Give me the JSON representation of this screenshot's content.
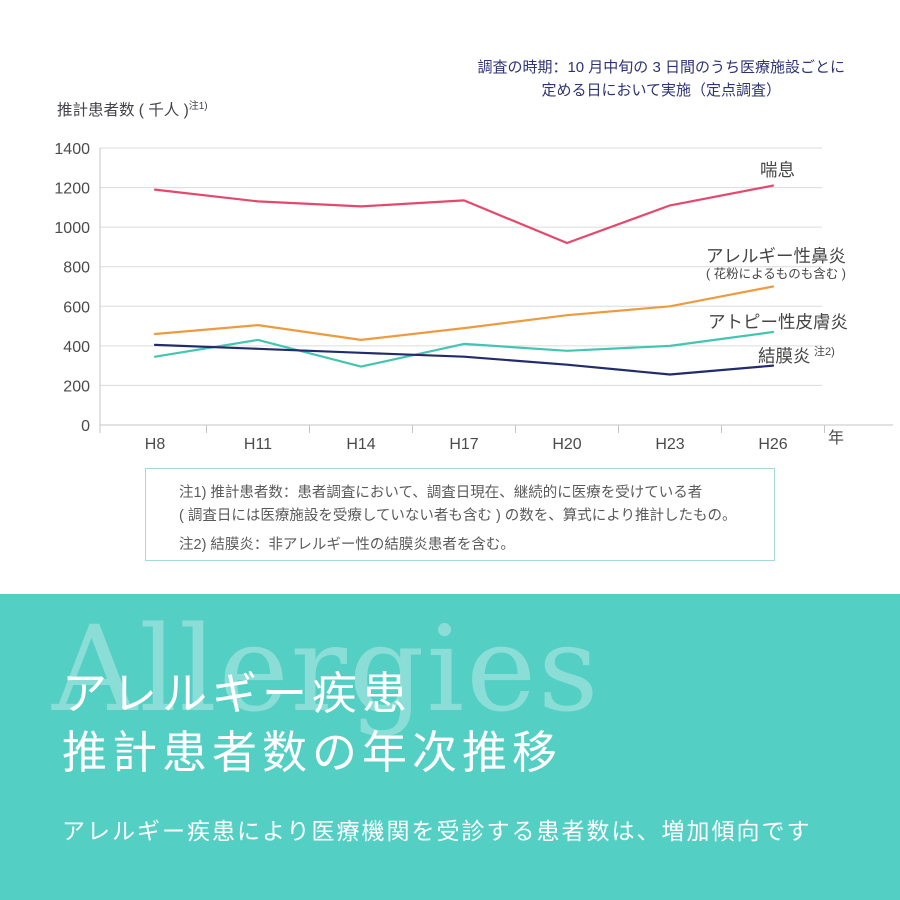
{
  "survey_note": {
    "line1": "調査の時期：10 月中旬の 3 日間のうち医療施設ごとに",
    "line2": "定める日において実施（定点調査）"
  },
  "y_axis": {
    "label": "推計患者数 ( 千人 )",
    "label_sup": "注1)"
  },
  "x_axis_unit": "年",
  "chart_data": {
    "type": "line",
    "title": "アレルギー疾患 推計患者数の年次推移",
    "categories": [
      "H8",
      "H11",
      "H14",
      "H17",
      "H20",
      "H23",
      "H26"
    ],
    "series": [
      {
        "name": "喘息",
        "color": "#e5486b",
        "values": [
          1190,
          1130,
          1105,
          1135,
          920,
          1110,
          1210
        ]
      },
      {
        "name": "アレルギー性鼻炎",
        "sub": "( 花粉によるものも含む )",
        "color": "#ee9b40",
        "values": [
          460,
          505,
          430,
          490,
          555,
          600,
          700
        ]
      },
      {
        "name": "アトピー性皮膚炎",
        "color": "#44c5b1",
        "values": [
          345,
          430,
          295,
          410,
          375,
          400,
          470
        ]
      },
      {
        "name": "結膜炎",
        "sup": "注2)",
        "color": "#222c6b",
        "values": [
          405,
          385,
          365,
          345,
          305,
          255,
          300
        ]
      }
    ],
    "ylim": [
      0,
      1400
    ],
    "ytick_step": 200,
    "grid": true,
    "legend_position": "right-inline",
    "colors": {
      "gridline": "#dcdcdc",
      "axis": "#c6c6c6",
      "tick_label": "#4b4b4b"
    }
  },
  "notes_box": {
    "note1_line1": "注1) 推計患者数：患者調査において、調査日現在、継続的に医療を受けている者",
    "note1_line2": "( 調査日には医療施設を受療していない者も含む ) の数を、算式により推計したもの。",
    "note2": "注2) 結膜炎：非アレルギー性の結膜炎患者を含む。"
  },
  "footer": {
    "watermark": "Allergies",
    "title_line1": "アレルギー疾患",
    "title_line2": "推計患者数の年次推移",
    "subtitle": "アレルギー疾患により医療機関を受診する患者数は、増加傾向です",
    "bg_color": "#54cfc4"
  }
}
